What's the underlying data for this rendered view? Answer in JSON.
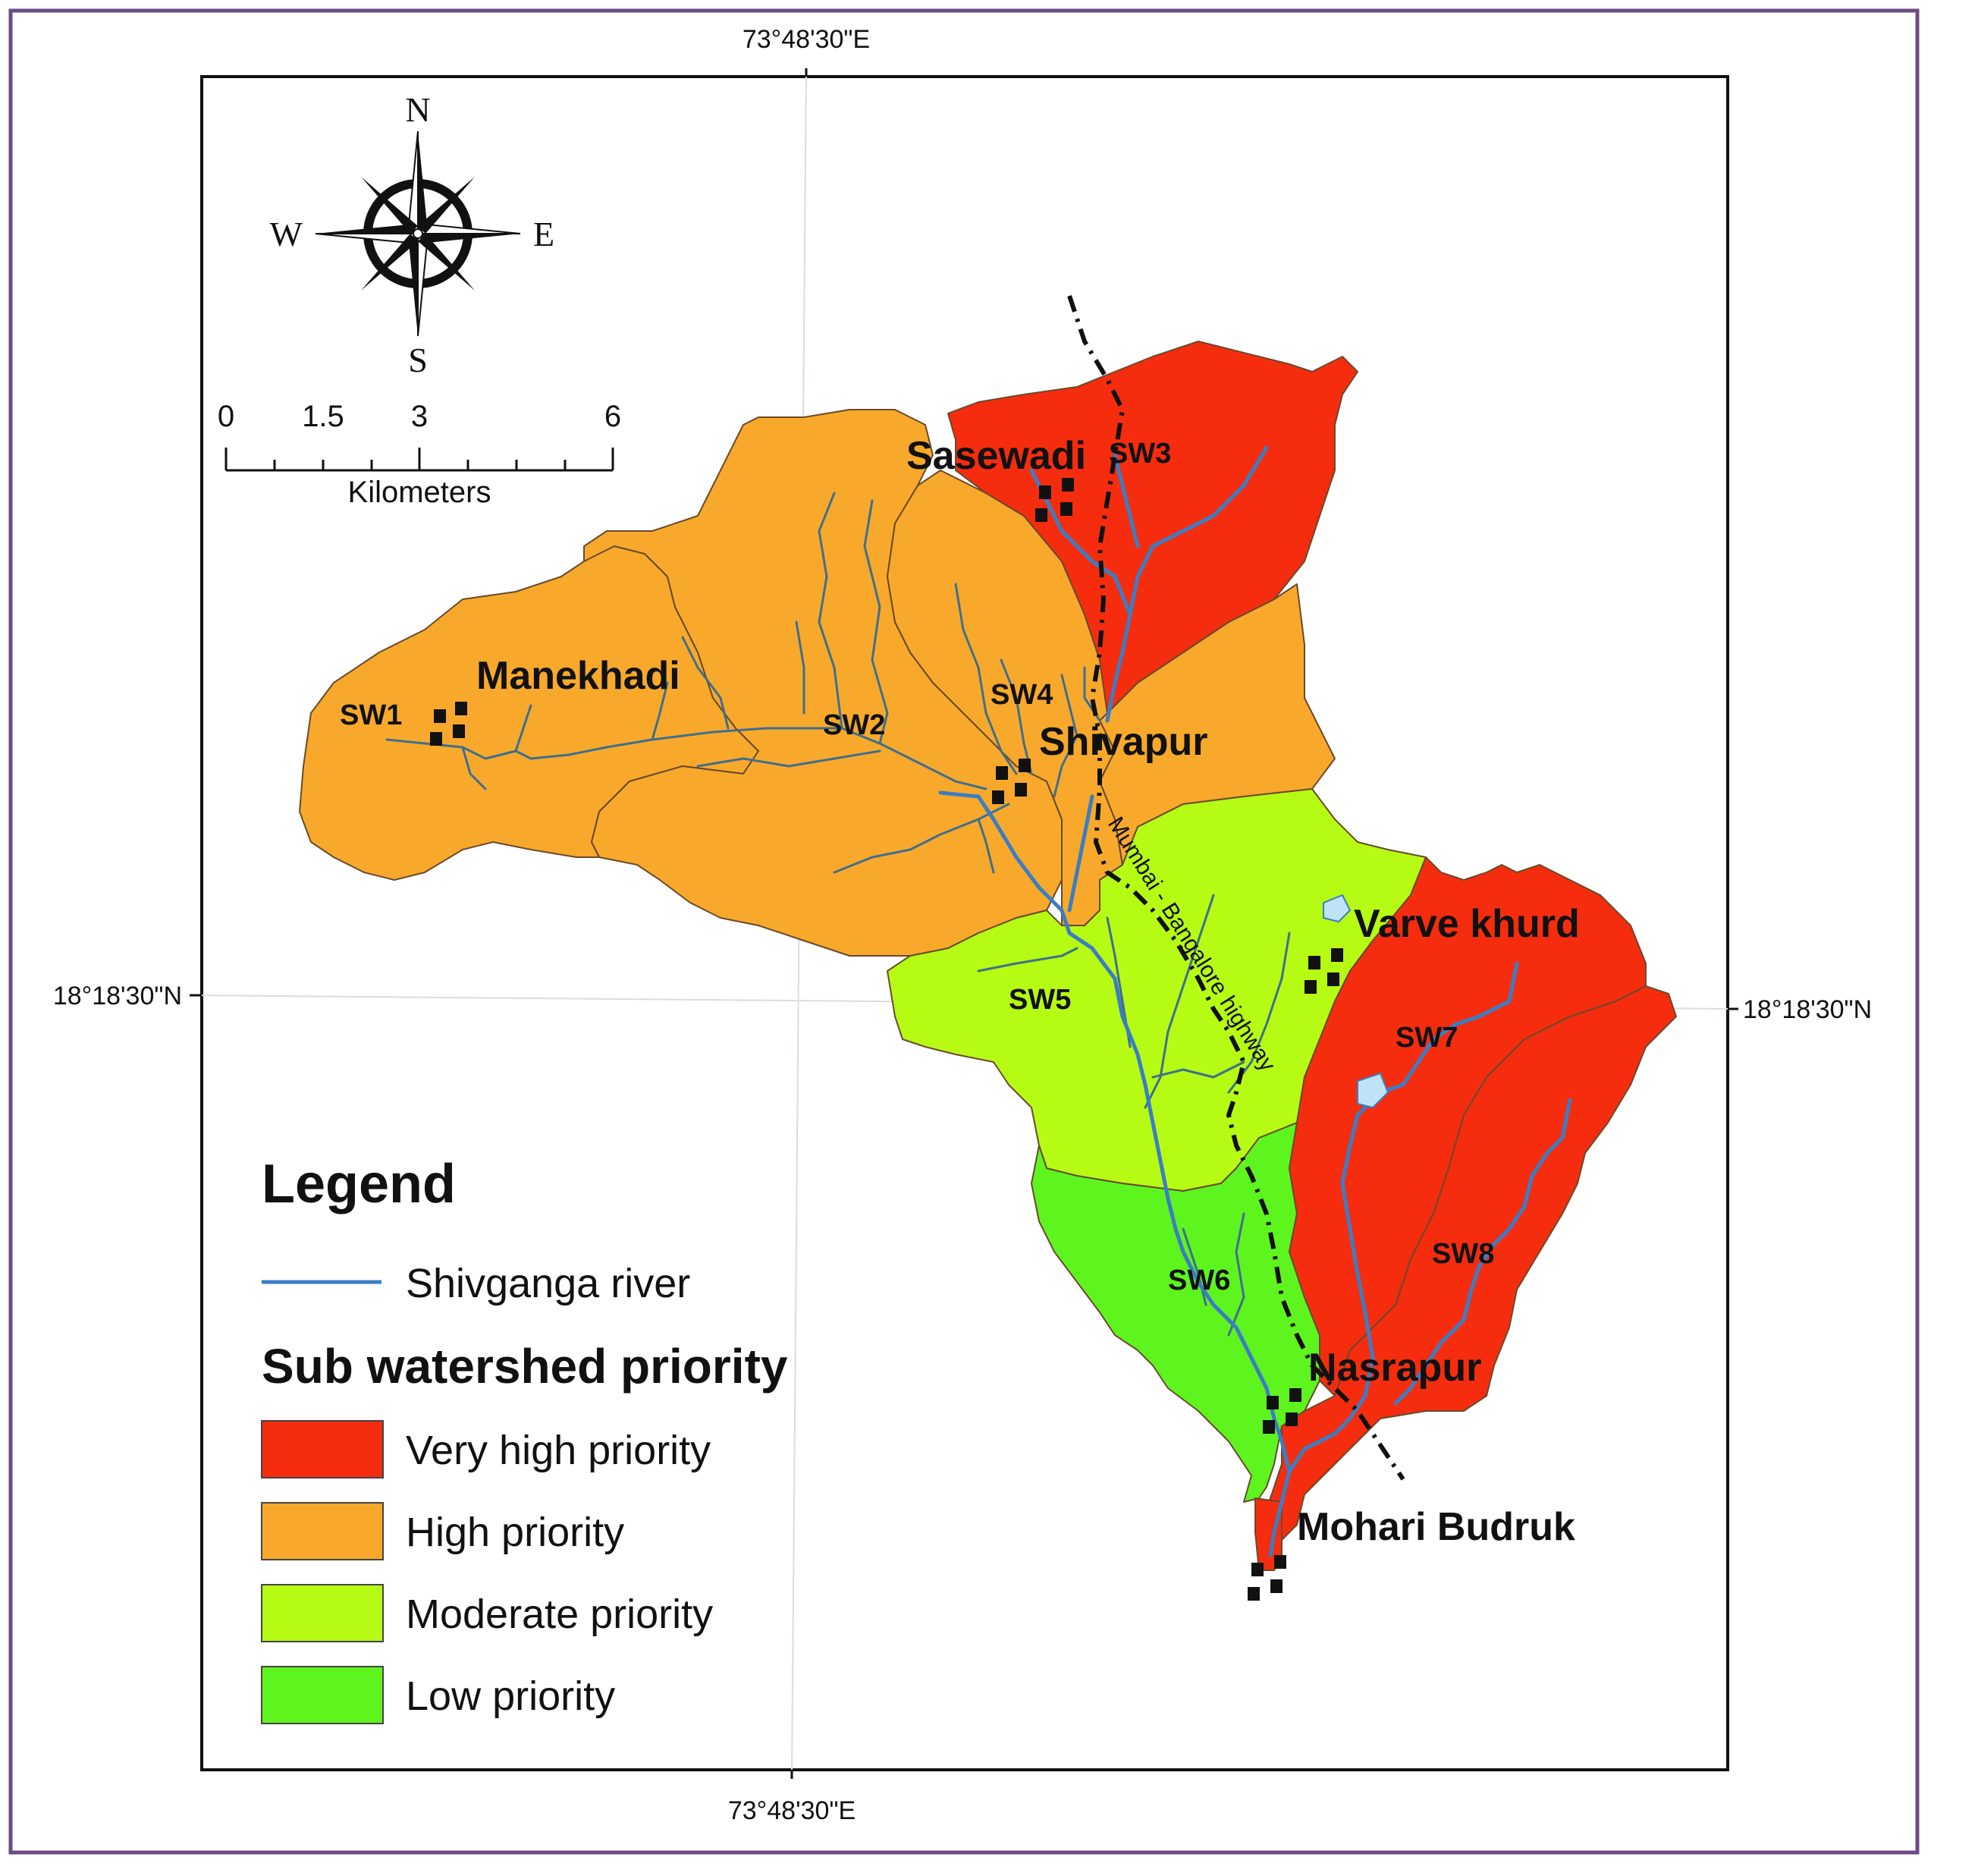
{
  "coordinates": {
    "lon_top": "73°48'30\"E",
    "lon_bottom": "73°48'30\"E",
    "lat_left": "18°18'30\"N",
    "lat_right": "18°18'30\"N"
  },
  "compass": {
    "north": "N",
    "south": "S",
    "east": "E",
    "west": "W"
  },
  "scale_bar": {
    "ticks": [
      "0",
      "1.5",
      "3",
      "6"
    ],
    "unit": "Kilometers"
  },
  "places": {
    "sasewadi": "Sasewadi",
    "manekhadi": "Manekhadi",
    "shivapur": "Shivapur",
    "varve_khurd": "Varve khurd",
    "nasrapur": "Nasrapur",
    "mohari_budruk": "Mohari Budruk"
  },
  "sub_watersheds": {
    "sw1": "SW1",
    "sw2": "SW2",
    "sw3": "SW3",
    "sw4": "SW4",
    "sw5": "SW5",
    "sw6": "SW6",
    "sw7": "SW7",
    "sw8": "SW8"
  },
  "highway_label": "Mumbai - Bangalore highway",
  "legend": {
    "title": "Legend",
    "river_label": "Shivganga river",
    "priority_title": "Sub watershed priority",
    "items": [
      {
        "label": "Very high priority",
        "color": "#f52d0e"
      },
      {
        "label": "High priority",
        "color": "#f8a92b"
      },
      {
        "label": "Moderate priority",
        "color": "#b5fb14"
      },
      {
        "label": "Low priority",
        "color": "#5ef51e"
      }
    ]
  },
  "colors": {
    "very_high": "#f52d0e",
    "high": "#f8a92b",
    "moderate": "#b5fb14",
    "low": "#5ef51e",
    "river": "#3b7dc4",
    "stream": "#3f6f8c",
    "frame_border": "#6b4a86"
  }
}
